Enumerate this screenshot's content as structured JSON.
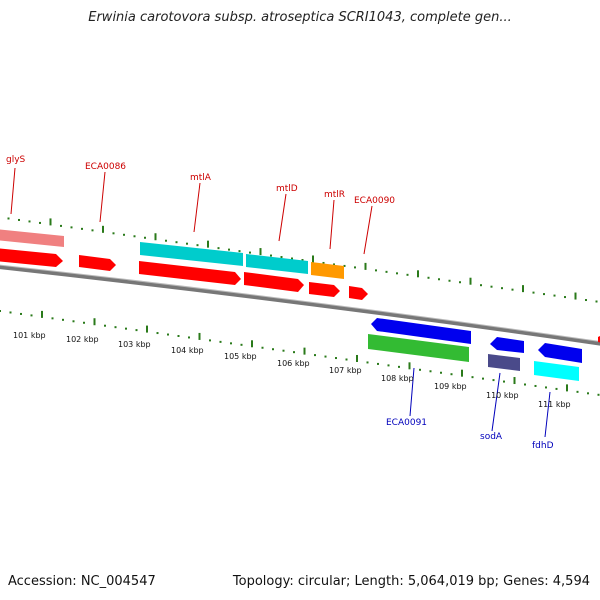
{
  "title": "Erwinia carotovora subsp. atroseptica SCRI1043, complete gen...",
  "footer": {
    "accession": "Accession: NC_004547",
    "topology": "Topology: circular; Length: 5,064,019 bp; Genes: 4,594"
  },
  "colors": {
    "label_forward": "#cc0000",
    "label_reverse": "#0000bb",
    "tick": "#2a7a1a",
    "backbone": "#888888"
  },
  "kbp_labels": [
    "101 kbp",
    "102 kbp",
    "103 kbp",
    "104 kbp",
    "105 kbp",
    "106 kbp",
    "107 kbp",
    "108 kbp",
    "109 kbp",
    "110 kbp",
    "111 kbp"
  ],
  "forward_gene_labels": [
    "glyS",
    "ECA0086",
    "mtlA",
    "mtlD",
    "mtlR",
    "ECA0090"
  ],
  "reverse_gene_labels": [
    "ECA0091",
    "sodA",
    "fdhD"
  ],
  "legend_colors": {
    "cds": "#ff0000",
    "gene_pink": "#f08080",
    "gene_cyan": "#00cccc",
    "gene_orange": "#ff9900",
    "gene_blue": "#0000ee",
    "gene_green": "#33bb33",
    "gene_slate": "#4a4a8a"
  }
}
